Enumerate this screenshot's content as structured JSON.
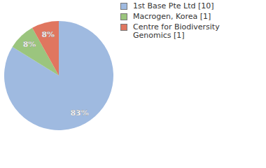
{
  "chart_data": {
    "type": "pie",
    "categories": [
      "1st Base Pte Ltd [10]",
      "Macrogen, Korea [1]",
      "Centre for Biodiversity Genomics [1]"
    ],
    "values": [
      83,
      8,
      8
    ],
    "value_labels": [
      "83%",
      "8%",
      "8%"
    ],
    "colors": [
      "#9fbae0",
      "#9bc57e",
      "#e0765f"
    ],
    "data_labels": true,
    "legend": "upper right"
  }
}
